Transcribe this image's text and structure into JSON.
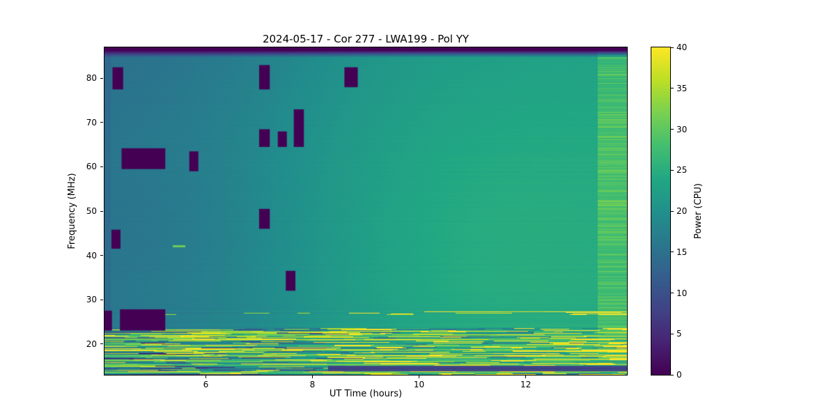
{
  "figure": {
    "background_color": "#ffffff",
    "text_color": "#000000"
  },
  "chart_data": {
    "type": "heatmap",
    "title": "2024-05-17 - Cor 277 - LWA199 - Pol YY",
    "xlabel": "UT Time (hours)",
    "ylabel": "Frequency (MHz)",
    "x_range": [
      4.1,
      13.9
    ],
    "y_range": [
      13,
      87
    ],
    "value_range": [
      0,
      40
    ],
    "x_ticks": [
      6,
      8,
      10,
      12
    ],
    "y_ticks": [
      20,
      30,
      40,
      50,
      60,
      70,
      80
    ],
    "colorbar": {
      "label": "Power (CPU)",
      "ticks": [
        0,
        5,
        10,
        15,
        20,
        25,
        30,
        35,
        40
      ]
    },
    "colormap": "viridis",
    "colormap_stops": [
      [
        68,
        1,
        84
      ],
      [
        72,
        36,
        117
      ],
      [
        65,
        68,
        135
      ],
      [
        53,
        95,
        141
      ],
      [
        42,
        120,
        142
      ],
      [
        33,
        145,
        140
      ],
      [
        34,
        168,
        132
      ],
      [
        68,
        191,
        112
      ],
      [
        122,
        209,
        81
      ],
      [
        189,
        223,
        38
      ],
      [
        253,
        231,
        37
      ]
    ],
    "flagged_color": "#440154",
    "background_power": {
      "left_teal": 16.5,
      "right_green": 24.5
    },
    "features": {
      "top_dark_band": {
        "f": [
          85.5,
          87
        ],
        "power": 0
      },
      "bright_right_column": {
        "t": [
          13.35,
          13.9
        ]
      },
      "low_freq_rfi_band": {
        "f": [
          13,
          23.5
        ],
        "description": "dense intermittent horizontal RFI streaks, 0-40 CPU"
      },
      "rfi_lines": [
        21.9,
        21.0,
        19.6,
        18.6,
        17.4,
        16.2,
        15.3,
        13.6
      ],
      "dashed_line_27mhz": {
        "f": 26.9,
        "t": [
          9,
          13.9
        ]
      },
      "dark_band_14mhz": {
        "f": [
          13.85,
          15.0
        ],
        "t": [
          8.3,
          13.9
        ],
        "power": 8
      },
      "rfi_flagged_blocks": [
        {
          "t": [
            4.25,
            4.45
          ],
          "f": [
            77.5,
            82.5
          ]
        },
        {
          "t": [
            7.0,
            7.2
          ],
          "f": [
            77.5,
            83.0
          ]
        },
        {
          "t": [
            8.6,
            8.85
          ],
          "f": [
            78.0,
            82.5
          ]
        },
        {
          "t": [
            7.65,
            7.84
          ],
          "f": [
            64.5,
            73.0
          ]
        },
        {
          "t": [
            7.0,
            7.2
          ],
          "f": [
            64.5,
            68.5
          ]
        },
        {
          "t": [
            7.35,
            7.52
          ],
          "f": [
            64.5,
            68.0
          ]
        },
        {
          "t": [
            4.42,
            5.24
          ],
          "f": [
            59.5,
            64.2
          ]
        },
        {
          "t": [
            5.69,
            5.86
          ],
          "f": [
            59.0,
            63.5
          ]
        },
        {
          "t": [
            7.0,
            7.2
          ],
          "f": [
            46.0,
            50.5
          ]
        },
        {
          "t": [
            4.23,
            4.4
          ],
          "f": [
            41.5,
            45.8
          ]
        },
        {
          "t": [
            7.5,
            7.68
          ],
          "f": [
            32.0,
            36.5
          ]
        },
        {
          "t": [
            4.1,
            4.24
          ],
          "f": [
            23.0,
            27.5
          ]
        },
        {
          "t": [
            4.39,
            5.24
          ],
          "f": [
            23.0,
            27.8
          ]
        }
      ]
    }
  }
}
